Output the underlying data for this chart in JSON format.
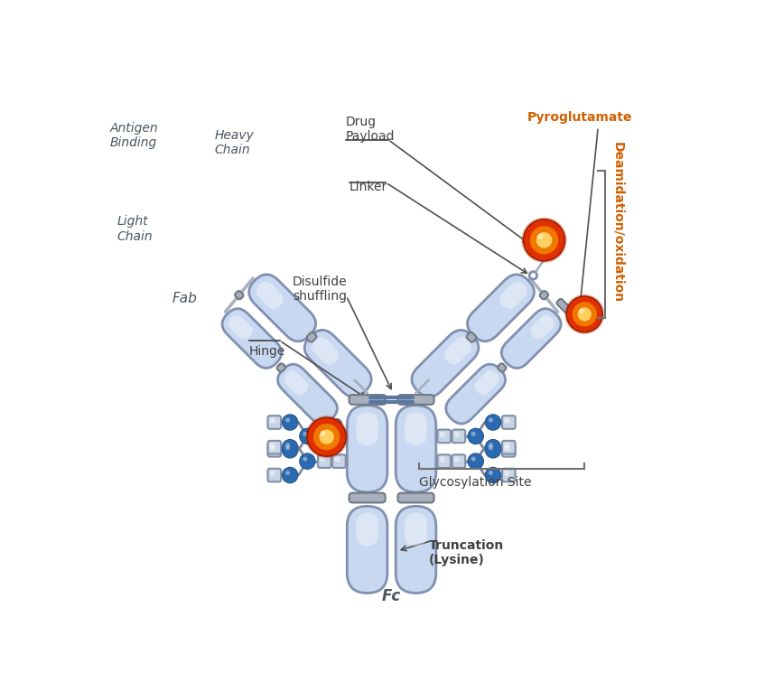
{
  "bg_color": "#ffffff",
  "domain_face": "#c8d8f0",
  "domain_edge": "#8090b0",
  "connector_face": "#a8b0c0",
  "connector_edge": "#707880",
  "drug_red": "#e03000",
  "drug_orange": "#f07800",
  "drug_yellow": "#ffd060",
  "glyco_sq_face": "#c8d4e4",
  "glyco_sq_edge": "#8090a8",
  "glyco_circ": "#2c6ab0",
  "glyco_circ_edge": "#1a4a80",
  "hinge_line": "#6080a8",
  "text_dark": "#404040",
  "text_italic_color": "#4a5560",
  "text_orange": "#d06000",
  "arrow_color": "#505050",
  "bracket_color": "#707070",
  "labels": {
    "antigen_binding": "Antigen\nBinding",
    "heavy_chain": "Heavy\nChain",
    "light_chain": "Light\nChain",
    "fab": "Fab",
    "drug_payload": "Drug\nPayload",
    "linker": "Linker",
    "pyroglutamate": "Pyroglutamate",
    "disulfide": "Disulfide\nshuffling",
    "deamidation": "Deamidation/oxidation",
    "hinge": "Hinge",
    "glycosylation": "Glycosylation Site",
    "truncation": "Truncation\n(Lysine)",
    "fc": "Fc"
  }
}
